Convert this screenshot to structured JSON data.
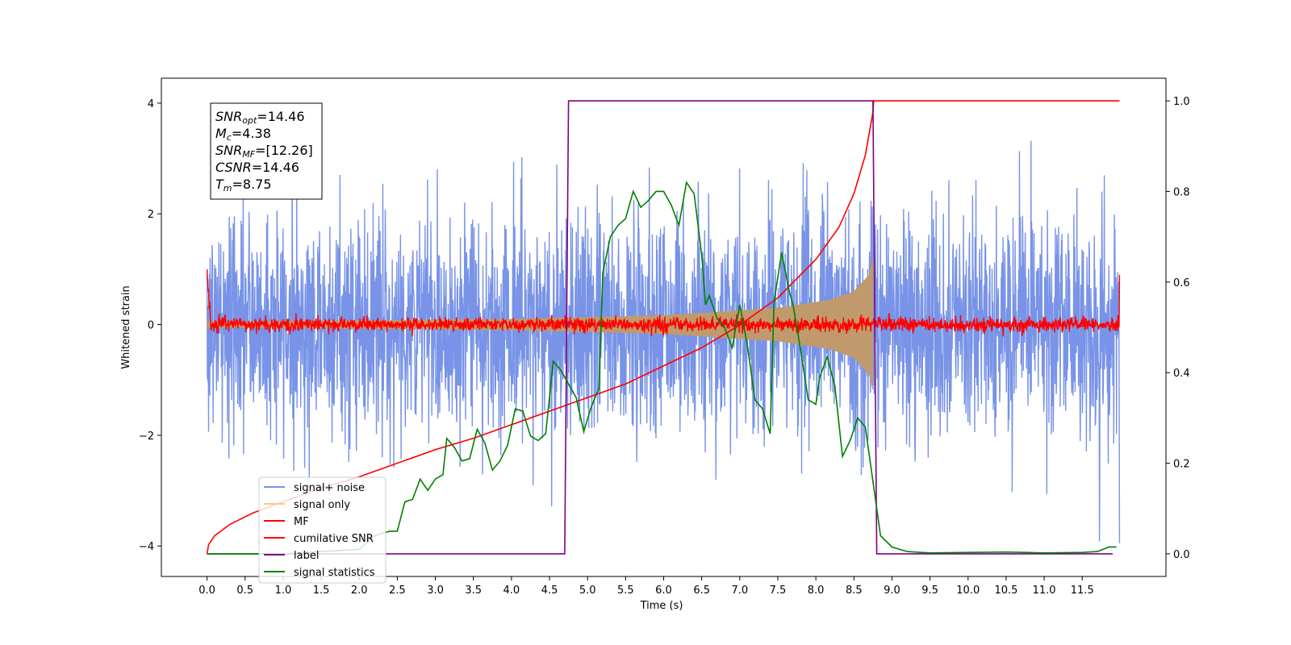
{
  "chart_data": {
    "type": "line",
    "title": "",
    "xlabel": "Time (s)",
    "ylabel": "Whitened strain",
    "xlim": [
      -0.6,
      12.6
    ],
    "ylim_left": [
      -4.55,
      4.45
    ],
    "ylim_right": [
      -0.05,
      1.05
    ],
    "x_ticks": [
      "0.0",
      "0.5",
      "1.0",
      "1.5",
      "2.0",
      "2.5",
      "3.0",
      "3.5",
      "4.0",
      "4.5",
      "5.0",
      "5.5",
      "6.0",
      "6.5",
      "7.0",
      "7.5",
      "8.0",
      "8.5",
      "9.0",
      "9.5",
      "10.0",
      "10.5",
      "11.0",
      "11.5"
    ],
    "x_tick_values": [
      0,
      0.5,
      1,
      1.5,
      2,
      2.5,
      3,
      3.5,
      4,
      4.5,
      5,
      5.5,
      6,
      6.5,
      7,
      7.5,
      8,
      8.5,
      9,
      9.5,
      10,
      10.5,
      11,
      11.5
    ],
    "y_left_ticks": [
      "4",
      "2",
      "0",
      "−2",
      "−4"
    ],
    "y_left_tick_values": [
      4,
      2,
      0,
      -2,
      -4
    ],
    "y_right_ticks": [
      "1.0",
      "0.8",
      "0.6",
      "0.4",
      "0.2",
      "0.0"
    ],
    "y_right_tick_values": [
      1.0,
      0.8,
      0.6,
      0.4,
      0.2,
      0.0
    ],
    "grid": false,
    "legend_position": "bottom-left",
    "annotation": [
      {
        "main": "SNR",
        "sub": "opt",
        "rest": "=14.46"
      },
      {
        "main": "M",
        "sub": "c",
        "rest": "=4.38"
      },
      {
        "main": "SNR",
        "sub": "MF",
        "rest": "=[12.26]"
      },
      {
        "main": "CSNR",
        "sub": "",
        "rest": "=14.46"
      },
      {
        "main": "T",
        "sub": "m",
        "rest": "=8.75"
      }
    ],
    "series": [
      {
        "name": "signal+ noise",
        "color": "#7893e7",
        "axis": "left",
        "kind": "noise",
        "t_range": [
          0,
          11.99
        ],
        "sigma": 1.0
      },
      {
        "name": "signal only",
        "color": "#c09a6c",
        "legend_color": "#f7c98f",
        "axis": "left",
        "kind": "chirp",
        "t_range": [
          0,
          8.75
        ],
        "envelope": [
          [
            0,
            0.05
          ],
          [
            4.0,
            0.1
          ],
          [
            6.0,
            0.17
          ],
          [
            7.5,
            0.3
          ],
          [
            8.2,
            0.45
          ],
          [
            8.5,
            0.6
          ],
          [
            8.7,
            0.9
          ],
          [
            8.75,
            1.2
          ]
        ]
      },
      {
        "name": "MF",
        "color": "#ff0000",
        "axis": "left",
        "kind": "mf",
        "t_range": [
          0,
          11.99
        ],
        "start_value": 1.0,
        "end_value": 0.9
      },
      {
        "name": "cumilative SNR",
        "color": "#ff0000",
        "axis": "right",
        "points": [
          [
            0.0,
            0.0
          ],
          [
            0.02,
            0.02
          ],
          [
            0.1,
            0.04
          ],
          [
            0.3,
            0.065
          ],
          [
            0.6,
            0.09
          ],
          [
            1.0,
            0.115
          ],
          [
            1.5,
            0.145
          ],
          [
            2.0,
            0.17
          ],
          [
            2.5,
            0.2
          ],
          [
            3.0,
            0.23
          ],
          [
            3.5,
            0.255
          ],
          [
            4.0,
            0.285
          ],
          [
            4.5,
            0.315
          ],
          [
            5.0,
            0.345
          ],
          [
            5.5,
            0.375
          ],
          [
            6.0,
            0.415
          ],
          [
            6.5,
            0.455
          ],
          [
            7.0,
            0.505
          ],
          [
            7.5,
            0.565
          ],
          [
            8.0,
            0.65
          ],
          [
            8.3,
            0.72
          ],
          [
            8.5,
            0.795
          ],
          [
            8.65,
            0.88
          ],
          [
            8.75,
            0.975
          ],
          [
            8.76,
            1.0
          ],
          [
            11.99,
            1.0
          ]
        ]
      },
      {
        "name": "label",
        "color": "#800080",
        "axis": "right",
        "points": [
          [
            0.0,
            0.0
          ],
          [
            4.7,
            0.0
          ],
          [
            4.75,
            1.0
          ],
          [
            8.75,
            1.0
          ],
          [
            8.8,
            0.0
          ],
          [
            11.9,
            0.0
          ]
        ]
      },
      {
        "name": "signal statistics",
        "color": "#008000",
        "axis": "right",
        "points": [
          [
            0.0,
            0.0
          ],
          [
            0.5,
            0.0
          ],
          [
            1.0,
            0.0
          ],
          [
            1.5,
            0.005
          ],
          [
            2.0,
            0.01
          ],
          [
            2.2,
            0.04
          ],
          [
            2.4,
            0.05
          ],
          [
            2.5,
            0.05
          ],
          [
            2.6,
            0.115
          ],
          [
            2.7,
            0.12
          ],
          [
            2.8,
            0.165
          ],
          [
            2.9,
            0.14
          ],
          [
            3.0,
            0.165
          ],
          [
            3.1,
            0.175
          ],
          [
            3.15,
            0.255
          ],
          [
            3.25,
            0.235
          ],
          [
            3.35,
            0.205
          ],
          [
            3.45,
            0.21
          ],
          [
            3.55,
            0.275
          ],
          [
            3.65,
            0.245
          ],
          [
            3.75,
            0.185
          ],
          [
            3.85,
            0.205
          ],
          [
            3.95,
            0.24
          ],
          [
            4.05,
            0.32
          ],
          [
            4.15,
            0.315
          ],
          [
            4.25,
            0.26
          ],
          [
            4.35,
            0.25
          ],
          [
            4.45,
            0.265
          ],
          [
            4.55,
            0.425
          ],
          [
            4.65,
            0.405
          ],
          [
            4.75,
            0.375
          ],
          [
            4.85,
            0.345
          ],
          [
            4.95,
            0.27
          ],
          [
            5.05,
            0.325
          ],
          [
            5.15,
            0.365
          ],
          [
            5.2,
            0.62
          ],
          [
            5.3,
            0.7
          ],
          [
            5.4,
            0.725
          ],
          [
            5.5,
            0.74
          ],
          [
            5.6,
            0.8
          ],
          [
            5.7,
            0.765
          ],
          [
            5.8,
            0.78
          ],
          [
            5.9,
            0.8
          ],
          [
            6.0,
            0.8
          ],
          [
            6.1,
            0.77
          ],
          [
            6.2,
            0.725
          ],
          [
            6.3,
            0.82
          ],
          [
            6.4,
            0.795
          ],
          [
            6.5,
            0.66
          ],
          [
            6.55,
            0.55
          ],
          [
            6.6,
            0.57
          ],
          [
            6.7,
            0.52
          ],
          [
            6.8,
            0.5
          ],
          [
            6.9,
            0.455
          ],
          [
            7.0,
            0.55
          ],
          [
            7.1,
            0.46
          ],
          [
            7.2,
            0.34
          ],
          [
            7.3,
            0.32
          ],
          [
            7.4,
            0.265
          ],
          [
            7.45,
            0.555
          ],
          [
            7.55,
            0.665
          ],
          [
            7.65,
            0.58
          ],
          [
            7.7,
            0.55
          ],
          [
            7.8,
            0.45
          ],
          [
            7.9,
            0.34
          ],
          [
            8.0,
            0.33
          ],
          [
            8.05,
            0.39
          ],
          [
            8.15,
            0.435
          ],
          [
            8.25,
            0.37
          ],
          [
            8.35,
            0.215
          ],
          [
            8.45,
            0.25
          ],
          [
            8.55,
            0.3
          ],
          [
            8.65,
            0.28
          ],
          [
            8.75,
            0.16
          ],
          [
            8.85,
            0.04
          ],
          [
            9.0,
            0.015
          ],
          [
            9.2,
            0.005
          ],
          [
            9.5,
            0.002
          ],
          [
            10.0,
            0.003
          ],
          [
            10.5,
            0.004
          ],
          [
            11.0,
            0.002
          ],
          [
            11.5,
            0.003
          ],
          [
            11.7,
            0.005
          ],
          [
            11.85,
            0.015
          ],
          [
            11.95,
            0.015
          ]
        ]
      }
    ]
  }
}
